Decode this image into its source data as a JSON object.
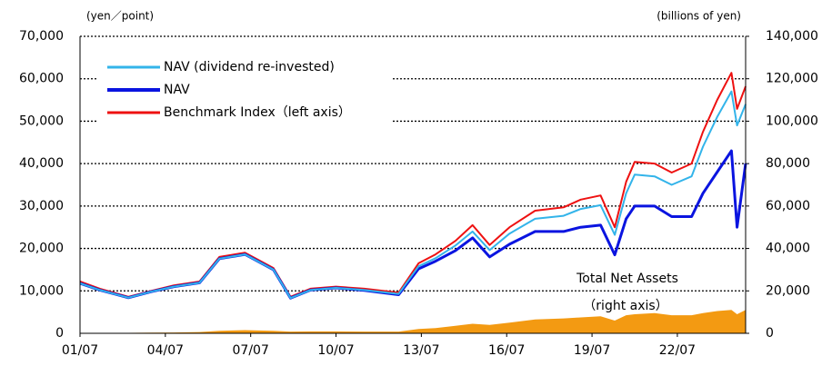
{
  "chart_data": {
    "type": "line",
    "y_unit_label": "(yen／point)",
    "y2_unit_label": "(billions of yen)",
    "annotation": "（right axis）",
    "legend": "upper left",
    "grid": true,
    "x": [
      2001.5,
      2002.2,
      2003.2,
      2004.0,
      2004.8,
      2005.7,
      2006.4,
      2007.3,
      2008.3,
      2008.9,
      2009.6,
      2010.5,
      2011.5,
      2012.7,
      2013.4,
      2014.0,
      2014.7,
      2015.3,
      2015.9,
      2016.6,
      2017.5,
      2018.5,
      2019.1,
      2019.8,
      2020.3,
      2020.7,
      2021.0,
      2021.7,
      2022.3,
      2023.0,
      2023.4,
      2023.9,
      2024.4,
      2024.6,
      2024.9
    ],
    "xlim": [
      2001.5,
      2024.9
    ],
    "xticks": [
      {
        "value": 2001.5,
        "label": "01/07"
      },
      {
        "value": 2004.5,
        "label": "04/07"
      },
      {
        "value": 2007.5,
        "label": "07/07"
      },
      {
        "value": 2010.5,
        "label": "10/07"
      },
      {
        "value": 2013.5,
        "label": "13/07"
      },
      {
        "value": 2016.5,
        "label": "16/07"
      },
      {
        "value": 2019.5,
        "label": "19/07"
      },
      {
        "value": 2022.5,
        "label": "22/07"
      }
    ],
    "ylim": [
      0,
      70000
    ],
    "yticks": [
      0,
      {
        "value": 10000,
        "label": "10,000"
      },
      {
        "value": 20000,
        "label": "20,000"
      },
      {
        "value": 30000,
        "label": "30,000"
      },
      {
        "value": 40000,
        "label": "40,000"
      },
      {
        "value": 50000,
        "label": "50,000"
      },
      {
        "value": 60000,
        "label": "60,000"
      },
      {
        "value": 70000,
        "label": "70,000"
      }
    ],
    "y2lim": [
      0,
      140000
    ],
    "y2ticks": [
      0,
      {
        "value": 20000,
        "label": "20,000"
      },
      {
        "value": 40000,
        "label": "40,000"
      },
      {
        "value": 60000,
        "label": "60,000"
      },
      {
        "value": 80000,
        "label": "80,000"
      },
      {
        "value": 100000,
        "label": "100,000"
      },
      {
        "value": 120000,
        "label": "120,000"
      },
      {
        "value": 140000,
        "label": "140,000"
      }
    ],
    "series": [
      {
        "name": "NAV (dividend re-invested)",
        "color": "#33b4ea",
        "values": [
          11800,
          10200,
          8400,
          9800,
          11000,
          11900,
          17600,
          18600,
          15000,
          8300,
          10200,
          10700,
          10200,
          9300,
          15800,
          17700,
          20700,
          24000,
          19600,
          23500,
          27000,
          27700,
          29300,
          30200,
          23200,
          33000,
          37400,
          37000,
          35000,
          37000,
          44000,
          51000,
          57000,
          49000,
          54000
        ]
      },
      {
        "name": "NAV",
        "color": "#0a14e0",
        "values": [
          11800,
          10200,
          8400,
          9800,
          11000,
          11900,
          17600,
          18600,
          15000,
          8300,
          10200,
          10700,
          10100,
          9100,
          15200,
          17000,
          19500,
          22500,
          18000,
          21000,
          24000,
          24000,
          25000,
          25500,
          18500,
          27000,
          30000,
          30000,
          27500,
          27500,
          33000,
          38000,
          43000,
          25000,
          40000
        ]
      },
      {
        "name": "Benchmark Index（left axis）",
        "color": "#ee1111",
        "values": [
          12200,
          10500,
          8600,
          10000,
          11300,
          12200,
          18000,
          19000,
          15400,
          8600,
          10500,
          11000,
          10500,
          9600,
          16500,
          18600,
          21800,
          25500,
          20800,
          25000,
          28900,
          29700,
          31500,
          32500,
          25000,
          35700,
          40400,
          40000,
          37900,
          40000,
          47500,
          55000,
          61400,
          52900,
          58200
        ]
      },
      {
        "name": "Total Net Assets",
        "color": "#f39a12",
        "axis": "y2",
        "area": true,
        "in_legend": false,
        "values": [
          200,
          200,
          200,
          300,
          400,
          600,
          1200,
          1500,
          1200,
          800,
          900,
          900,
          800,
          800,
          2000,
          2500,
          3500,
          4500,
          4000,
          5000,
          6500,
          7000,
          7500,
          8000,
          6000,
          8500,
          9000,
          9500,
          8500,
          8500,
          9500,
          10500,
          11000,
          9000,
          11000
        ]
      }
    ]
  }
}
